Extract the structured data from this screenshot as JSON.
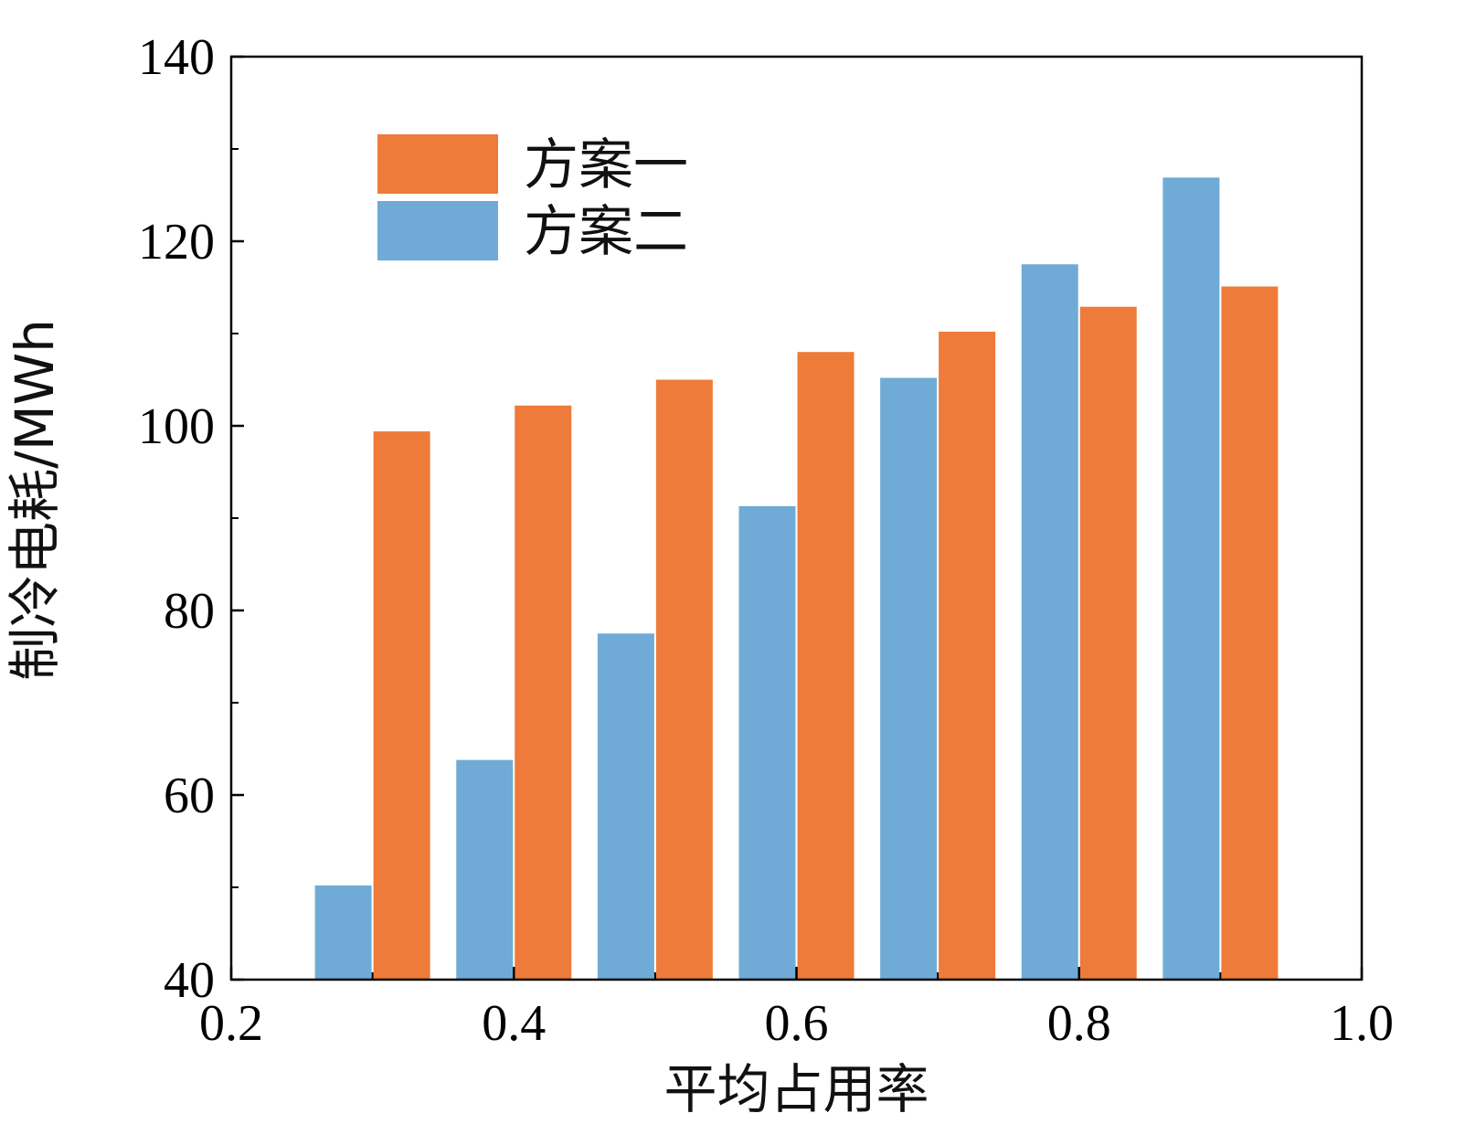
{
  "chart_data": {
    "type": "bar",
    "title": "",
    "xlabel": "平均占用率",
    "ylabel": "制冷电耗/MWh",
    "x": [
      0.3,
      0.4,
      0.5,
      0.6,
      0.7,
      0.8,
      0.9
    ],
    "xlim": [
      0.2,
      1.0
    ],
    "ylim": [
      40,
      140
    ],
    "xticks": [
      0.2,
      0.4,
      0.6,
      0.8,
      1.0
    ],
    "xtick_labels": [
      "0.2",
      "0.4",
      "0.6",
      "0.8",
      "1.0"
    ],
    "yticks": [
      40,
      60,
      80,
      100,
      120,
      140
    ],
    "ytick_labels": [
      "40",
      "60",
      "80",
      "100",
      "120",
      "140"
    ],
    "grid": false,
    "legend": "top-left",
    "series": [
      {
        "name": "方案一",
        "color": "#ee7b39",
        "values": [
          99.4,
          102.2,
          105.0,
          108.0,
          110.2,
          112.9,
          115.1
        ]
      },
      {
        "name": "方案二",
        "color": "#6fabd6",
        "values": [
          50.2,
          63.8,
          77.5,
          91.3,
          105.2,
          117.5,
          126.9
        ]
      }
    ]
  }
}
